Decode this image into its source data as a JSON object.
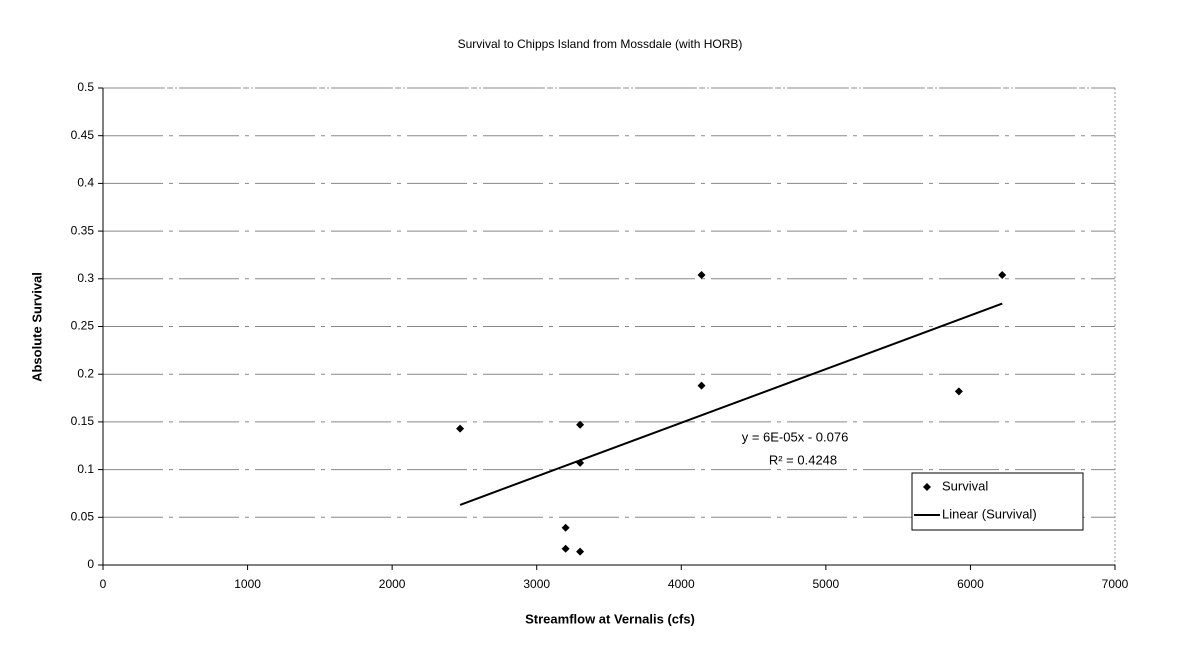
{
  "chart_data": {
    "type": "scatter",
    "title": "Survival to Chipps Island from Mossdale (with HORB)",
    "x_label": "Streamflow at Vernalis (cfs)",
    "y_label": "Absolute Survival",
    "xlim": [
      0,
      7000
    ],
    "xticks": [
      0,
      1000,
      2000,
      3000,
      4000,
      5000,
      6000,
      7000
    ],
    "ylim": [
      0,
      0.5
    ],
    "yticks": [
      0,
      0.05,
      0.1,
      0.15,
      0.2,
      0.25,
      0.3,
      0.35,
      0.4,
      0.45,
      0.5
    ],
    "grid": true,
    "legend": "lower right",
    "series": [
      {
        "name": "Survival",
        "type": "scatter",
        "color": "#000000",
        "x": [
          2470,
          3300,
          3300,
          3200,
          3200,
          3300,
          4140,
          4140,
          5920,
          6220
        ],
        "values": [
          0.143,
          0.147,
          0.107,
          0.039,
          0.017,
          0.014,
          0.304,
          0.188,
          0.182,
          0.304
        ]
      },
      {
        "name": "Linear (Survival)",
        "type": "line",
        "color": "#000000",
        "x": [
          2470,
          6220
        ],
        "values": [
          0.063,
          0.274
        ]
      }
    ],
    "annotations": [
      "y = 6E-05x - 0.076",
      "R² = 0.4248"
    ]
  }
}
